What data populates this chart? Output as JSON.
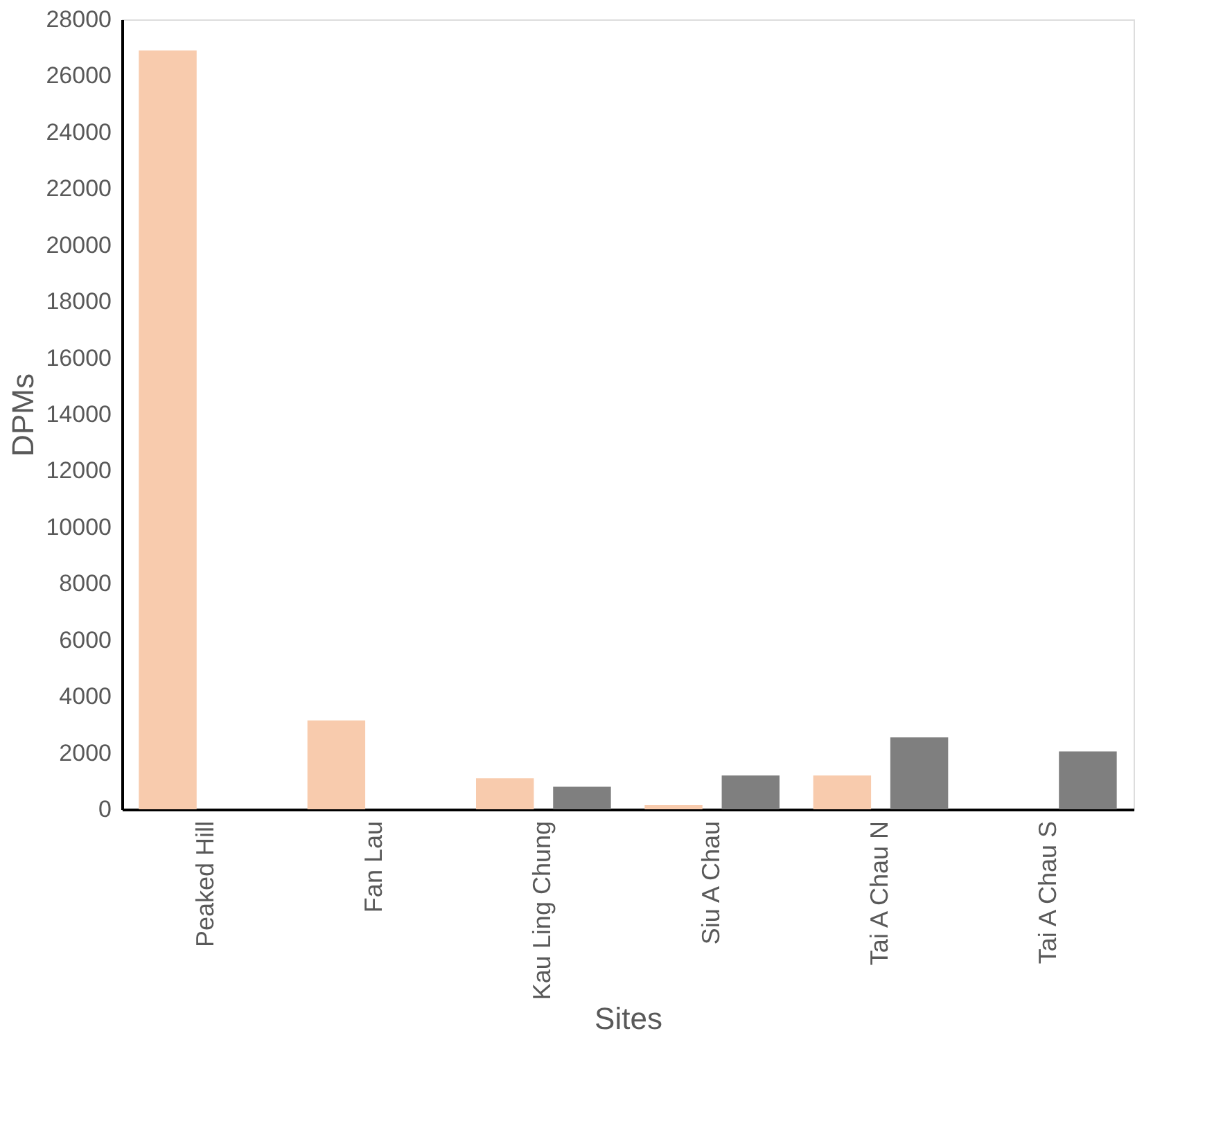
{
  "chart_data": {
    "type": "bar",
    "xlabel": "Sites",
    "ylabel": "DPMs",
    "categories": [
      "Peaked Hill",
      "Fan Lau",
      "Kau Ling Chung",
      "Siu A Chau",
      "Tai A Chau N",
      "Tai A Chau S"
    ],
    "series": [
      {
        "color": "#f8cbad",
        "values": [
          26900,
          3150,
          1100,
          150,
          1200,
          null
        ]
      },
      {
        "color": "#7f7f7f",
        "values": [
          null,
          null,
          800,
          1200,
          2550,
          2050
        ]
      }
    ],
    "ylim": [
      0,
      28000
    ],
    "yticks": [
      0,
      2000,
      4000,
      6000,
      8000,
      10000,
      12000,
      14000,
      16000,
      18000,
      20000,
      22000,
      24000,
      26000,
      28000
    ],
    "grid": false,
    "legend": false
  }
}
